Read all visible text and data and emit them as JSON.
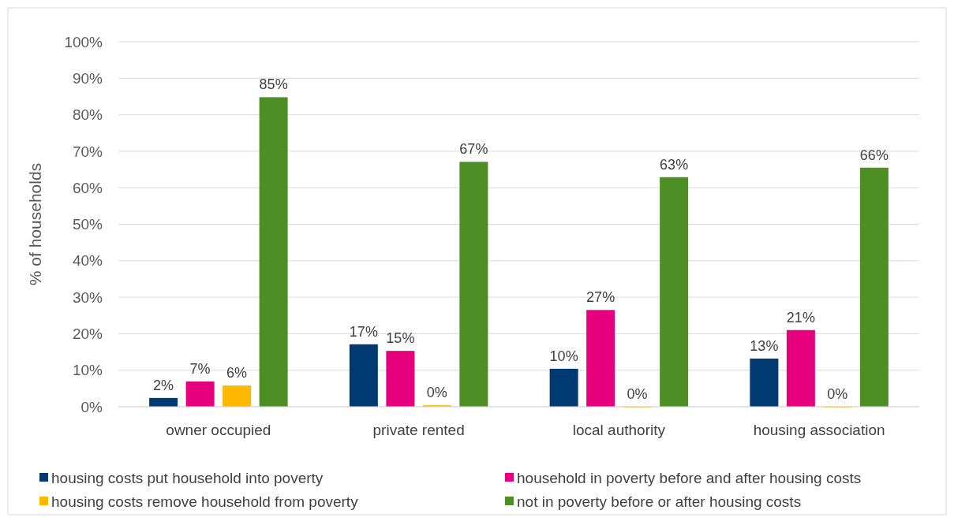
{
  "chart_data": {
    "type": "bar",
    "ylabel": "% of households",
    "categories": [
      "owner occupied",
      "private rented",
      "local authority",
      "housing association"
    ],
    "series": [
      {
        "name": "housing costs put household into poverty",
        "color": "#003a70",
        "values": [
          2.4,
          17.1,
          10.4,
          13.2
        ],
        "value_labels": [
          "2%",
          "17%",
          "10%",
          "13%"
        ]
      },
      {
        "name": "household in poverty before and after housing costs",
        "color": "#e6007e",
        "values": [
          6.9,
          15.3,
          26.5,
          21.0
        ],
        "value_labels": [
          "7%",
          "15%",
          "27%",
          "21%"
        ]
      },
      {
        "name": "housing costs remove household from poverty",
        "color": "#ffb800",
        "values": [
          5.8,
          0.4,
          0,
          0
        ],
        "value_labels": [
          "6%",
          "0%",
          "0%",
          "0%"
        ]
      },
      {
        "name": "not in poverty before or after housing costs",
        "color": "#4d8f25",
        "values": [
          84.8,
          67.1,
          62.9,
          65.5
        ],
        "value_labels": [
          "85%",
          "67%",
          "63%",
          "66%"
        ]
      }
    ],
    "ylim": [
      0,
      100
    ],
    "yticks": [
      {
        "value": 0,
        "label": "0%"
      },
      {
        "value": 10,
        "label": "10%"
      },
      {
        "value": 20,
        "label": "20%"
      },
      {
        "value": 30,
        "label": "30%"
      },
      {
        "value": 40,
        "label": "40%"
      },
      {
        "value": 50,
        "label": "50%"
      },
      {
        "value": 60,
        "label": "60%"
      },
      {
        "value": 70,
        "label": "70%"
      },
      {
        "value": 80,
        "label": "80%"
      },
      {
        "value": 90,
        "label": "90%"
      },
      {
        "value": 100,
        "label": "100%"
      }
    ],
    "grid": "y",
    "legend": "bottom"
  }
}
